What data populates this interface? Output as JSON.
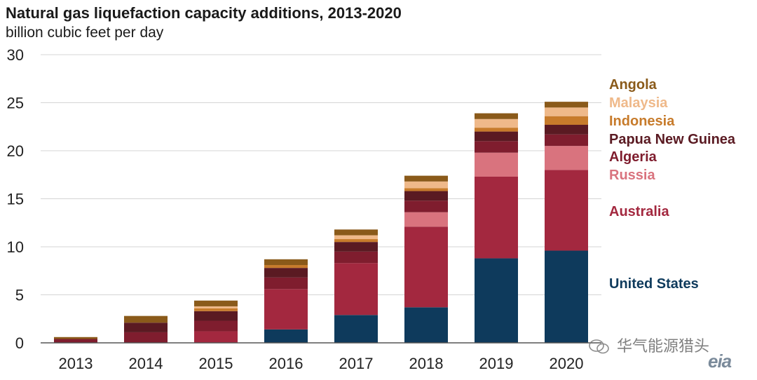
{
  "chart_data": {
    "type": "bar",
    "stacked": true,
    "title": "Natural gas liquefaction capacity additions, 2013-2020",
    "subtitle": "billion cubic feet per day",
    "categories": [
      "2013",
      "2014",
      "2015",
      "2016",
      "2017",
      "2018",
      "2019",
      "2020"
    ],
    "ylim": [
      0,
      30
    ],
    "yticks": [
      0,
      5,
      10,
      15,
      20,
      25,
      30
    ],
    "grid": true,
    "legend_position": "right (labels aligned with 2020 bar segments)",
    "series": [
      {
        "name": "United States",
        "color": "#0e3a5c",
        "values": [
          0,
          0,
          0,
          1.4,
          2.9,
          3.7,
          8.8,
          9.6
        ]
      },
      {
        "name": "Australia",
        "color": "#a3283f",
        "values": [
          0,
          0,
          1.2,
          4.2,
          5.4,
          8.4,
          8.5,
          8.4
        ]
      },
      {
        "name": "Russia",
        "color": "#d9737e",
        "values": [
          0,
          0,
          0,
          0,
          0,
          1.5,
          2.5,
          2.5
        ]
      },
      {
        "name": "Algeria",
        "color": "#7f1d2e",
        "values": [
          0.4,
          1.1,
          1.1,
          1.2,
          1.2,
          1.2,
          1.2,
          1.2
        ]
      },
      {
        "name": "Papua New Guinea",
        "color": "#5a1a22",
        "values": [
          0,
          1.0,
          1.0,
          1.0,
          1.0,
          1.0,
          1.0,
          1.0
        ]
      },
      {
        "name": "Indonesia",
        "color": "#c77b2b",
        "values": [
          0,
          0,
          0.3,
          0.3,
          0.3,
          0.3,
          0.4,
          0.9
        ]
      },
      {
        "name": "Malaysia",
        "color": "#efb98a",
        "values": [
          0,
          0,
          0.2,
          0,
          0.4,
          0.7,
          0.9,
          0.9
        ]
      },
      {
        "name": "Angola",
        "color": "#8a5a1a",
        "values": [
          0.2,
          0.7,
          0.6,
          0.6,
          0.6,
          0.6,
          0.6,
          0.6
        ]
      }
    ]
  },
  "watermark": {
    "text": "华气能源猎头"
  },
  "logo": {
    "text": "eia"
  }
}
